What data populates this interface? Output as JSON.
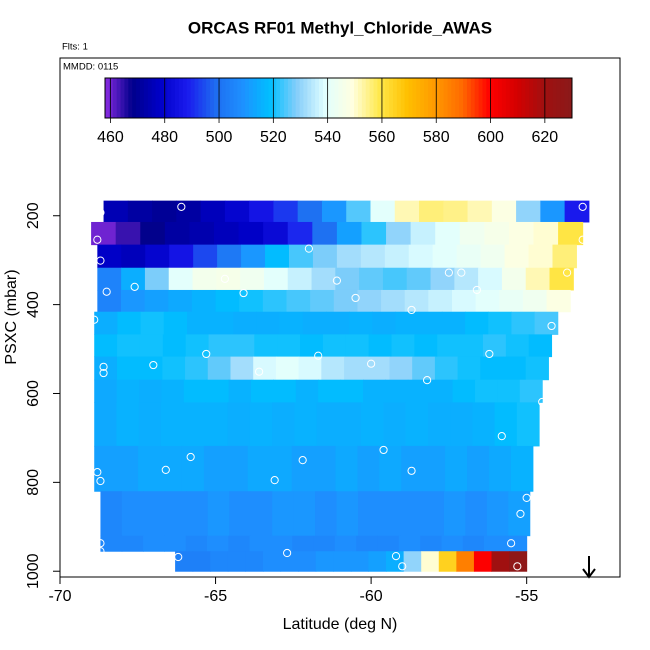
{
  "chart_data": {
    "type": "heatmap",
    "title": "ORCAS RF01 Methyl_Chloride_AWAS",
    "subtitle": "Flts: 1",
    "annotation": "MMDD: 0115",
    "x_label": "Latitude (deg N)",
    "y_label": "PSXC (mbar)",
    "xlim": [
      -70,
      -52
    ],
    "xticks": [
      -70,
      -65,
      -60,
      -55
    ],
    "ylim": [
      1013,
      -155
    ],
    "yticks": [
      200,
      400,
      600,
      800,
      1000
    ],
    "colorbar": {
      "lim": [
        458,
        630
      ],
      "ticks": [
        460,
        480,
        500,
        520,
        540,
        560,
        580,
        600,
        620
      ],
      "colors": [
        "#8a2be2",
        "#00008b",
        "#0000c8",
        "#1a1aee",
        "#1e6cf0",
        "#1e90ff",
        "#00bfff",
        "#87cefa",
        "#e0ffff",
        "#ffffe0",
        "#ffe84a",
        "#ffc000",
        "#ff9a00",
        "#ff6a00",
        "#ff0000",
        "#d40000",
        "#a01010",
        "#8b1a1a"
      ]
    },
    "rows": [
      {
        "p": [
          166,
          214
        ],
        "lat": [
          -68.6,
          -53.0
        ],
        "values": [
          475,
          472,
          470,
          472,
          476,
          480,
          486,
          492,
          500,
          510,
          525,
          540,
          552,
          556,
          555,
          552,
          548,
          530,
          510,
          488
        ]
      },
      {
        "p": [
          214,
          265
        ],
        "lat": [
          -69.0,
          -53.2
        ],
        "values": [
          460,
          464,
          468,
          472,
          474,
          476,
          478,
          482,
          490,
          500,
          512,
          522,
          530,
          536,
          540,
          544,
          546,
          548,
          550,
          560
        ]
      },
      {
        "p": [
          265,
          317
        ],
        "lat": [
          -68.8,
          -53.4
        ],
        "values": [
          478,
          476,
          480,
          486,
          494,
          502,
          510,
          518,
          524,
          528,
          532,
          534,
          536,
          538,
          540,
          542,
          544,
          548,
          550,
          556
        ]
      },
      {
        "p": [
          317,
          367
        ],
        "lat": [
          -68.8,
          -53.5
        ],
        "values": [
          505,
          515,
          528,
          540,
          545,
          546,
          544,
          540,
          536,
          532,
          528,
          526,
          524,
          526,
          530,
          534,
          538,
          545,
          552,
          560
        ]
      },
      {
        "p": [
          367,
          416
        ],
        "lat": [
          -68.8,
          -53.6
        ],
        "values": [
          505,
          510,
          512,
          514,
          516,
          518,
          520,
          522,
          524,
          526,
          528,
          530,
          532,
          534,
          536,
          538,
          540,
          542,
          544,
          548
        ]
      },
      {
        "p": [
          416,
          467
        ],
        "lat": [
          -68.9,
          -54.0
        ],
        "values": [
          515,
          518,
          520,
          518,
          516,
          516,
          515,
          515,
          516,
          515,
          515,
          516,
          515,
          516,
          516,
          516,
          518,
          520,
          522,
          524
        ]
      },
      {
        "p": [
          467,
          517
        ],
        "lat": [
          -68.9,
          -54.2
        ],
        "values": [
          518,
          520,
          520,
          518,
          520,
          522,
          522,
          520,
          520,
          518,
          520,
          520,
          518,
          520,
          518,
          520,
          520,
          522,
          520,
          518
        ]
      },
      {
        "p": [
          517,
          569
        ],
        "lat": [
          -68.9,
          -54.3
        ],
        "values": [
          515,
          518,
          518,
          520,
          522,
          526,
          532,
          538,
          540,
          538,
          534,
          532,
          532,
          530,
          526,
          522,
          520,
          518,
          518,
          520
        ]
      },
      {
        "p": [
          569,
          620
        ],
        "lat": [
          -68.9,
          -54.5
        ],
        "values": [
          514,
          516,
          515,
          516,
          518,
          518,
          516,
          518,
          518,
          516,
          518,
          518,
          516,
          516,
          516,
          516,
          518,
          520,
          520,
          522
        ]
      },
      {
        "p": [
          620,
          718
        ],
        "lat": [
          -68.9,
          -54.6
        ],
        "values": [
          514,
          516,
          515,
          516,
          516,
          516,
          515,
          516,
          515,
          516,
          515,
          515,
          516,
          515,
          516,
          515,
          515,
          516,
          518,
          520
        ]
      },
      {
        "p": [
          718,
          820
        ],
        "lat": [
          -68.9,
          -54.8
        ],
        "values": [
          512,
          512,
          514,
          514,
          514,
          512,
          512,
          514,
          514,
          512,
          512,
          514,
          512,
          514,
          512,
          512,
          514,
          512,
          514,
          516
        ]
      },
      {
        "p": [
          820,
          920
        ],
        "lat": [
          -68.7,
          -54.9
        ],
        "values": [
          506,
          508,
          508,
          508,
          508,
          510,
          508,
          508,
          510,
          510,
          508,
          510,
          508,
          508,
          508,
          508,
          510,
          508,
          510,
          512
        ]
      },
      {
        "p": [
          920,
          955
        ],
        "lat": [
          -68.7,
          -55.0
        ],
        "values": [
          506,
          506,
          508,
          508,
          506,
          508,
          506,
          508,
          508,
          506,
          506,
          508,
          506,
          506,
          508,
          506,
          508,
          506,
          508,
          508
        ]
      },
      {
        "p": [
          955,
          1000
        ],
        "lat": [
          -66.3,
          -55.0
        ],
        "values": [
          504,
          504,
          506,
          506,
          506,
          508,
          508,
          508,
          510,
          510,
          510,
          512,
          515,
          530,
          550,
          565,
          585,
          600,
          620,
          628
        ]
      }
    ],
    "samples": {
      "lat": [
        -68.7,
        -66.1,
        -53.2,
        -68.8,
        -68.7,
        -62.0,
        -53.2,
        -68.5,
        -67.6,
        -64.7,
        -64.1,
        -61.1,
        -60.5,
        -57.5,
        -57.1,
        -56.6,
        -53.7,
        -58.7,
        -54.2,
        -68.9,
        -65.3,
        -67.0,
        -68.6,
        -68.6,
        -61.7,
        -63.6,
        -60.0,
        -56.2,
        -58.2,
        -54.5,
        -55.8,
        -59.6,
        -65.8,
        -66.6,
        -62.2,
        -58.7,
        -68.8,
        -68.7,
        -63.1,
        -55.0,
        -55.2,
        -68.7,
        -68.7,
        -66.2,
        -62.7,
        -59.2,
        -59.0,
        -55.5,
        -55.3
      ],
      "p": [
        193,
        180,
        180,
        254,
        301,
        274,
        254,
        371,
        360,
        342,
        374,
        346,
        385,
        328,
        328,
        367,
        328,
        412,
        448,
        434,
        511,
        536,
        540,
        554,
        515,
        551,
        533,
        511,
        570,
        619,
        696,
        727,
        743,
        772,
        750,
        774,
        777,
        797,
        795,
        835,
        871,
        937,
        955,
        968,
        959,
        966,
        989,
        937,
        989
      ]
    }
  }
}
